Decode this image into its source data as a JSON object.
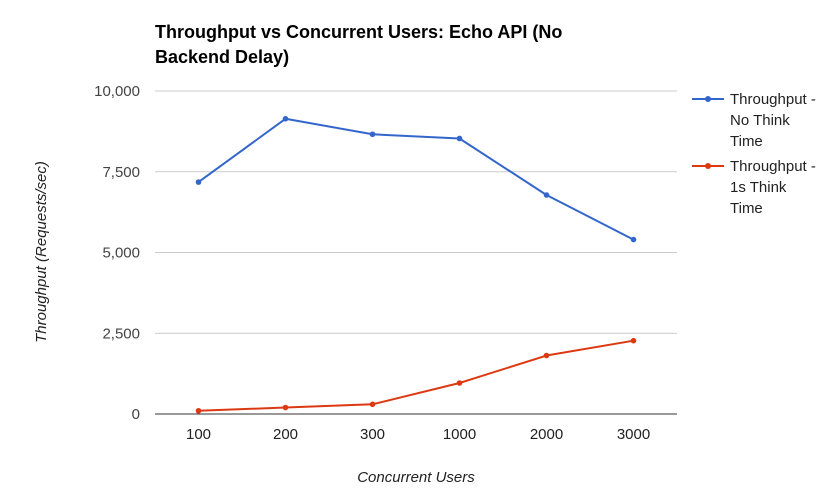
{
  "chart_data": {
    "type": "line",
    "title": "Throughput vs Concurrent Users: Echo API (No Backend Delay)",
    "xlabel": "Concurrent Users",
    "ylabel": "Throughput (Requests/sec)",
    "categories": [
      "100",
      "200",
      "300",
      "1000",
      "2000",
      "3000"
    ],
    "ylim": [
      0,
      10000
    ],
    "yticks": [
      "0",
      "2,500",
      "5,000",
      "7,500",
      "10,000"
    ],
    "ytick_values": [
      0,
      2500,
      5000,
      7500,
      10000
    ],
    "grid": true,
    "legend_position": "right",
    "series": [
      {
        "name": "Throughput - No Think Time",
        "color": "#3366cc",
        "values": [
          7180,
          9140,
          8660,
          8530,
          6780,
          5400
        ]
      },
      {
        "name": "Throughput - 1s Think Time",
        "color": "#dc3912",
        "values": [
          100,
          200,
          300,
          960,
          1810,
          2270
        ]
      }
    ]
  }
}
